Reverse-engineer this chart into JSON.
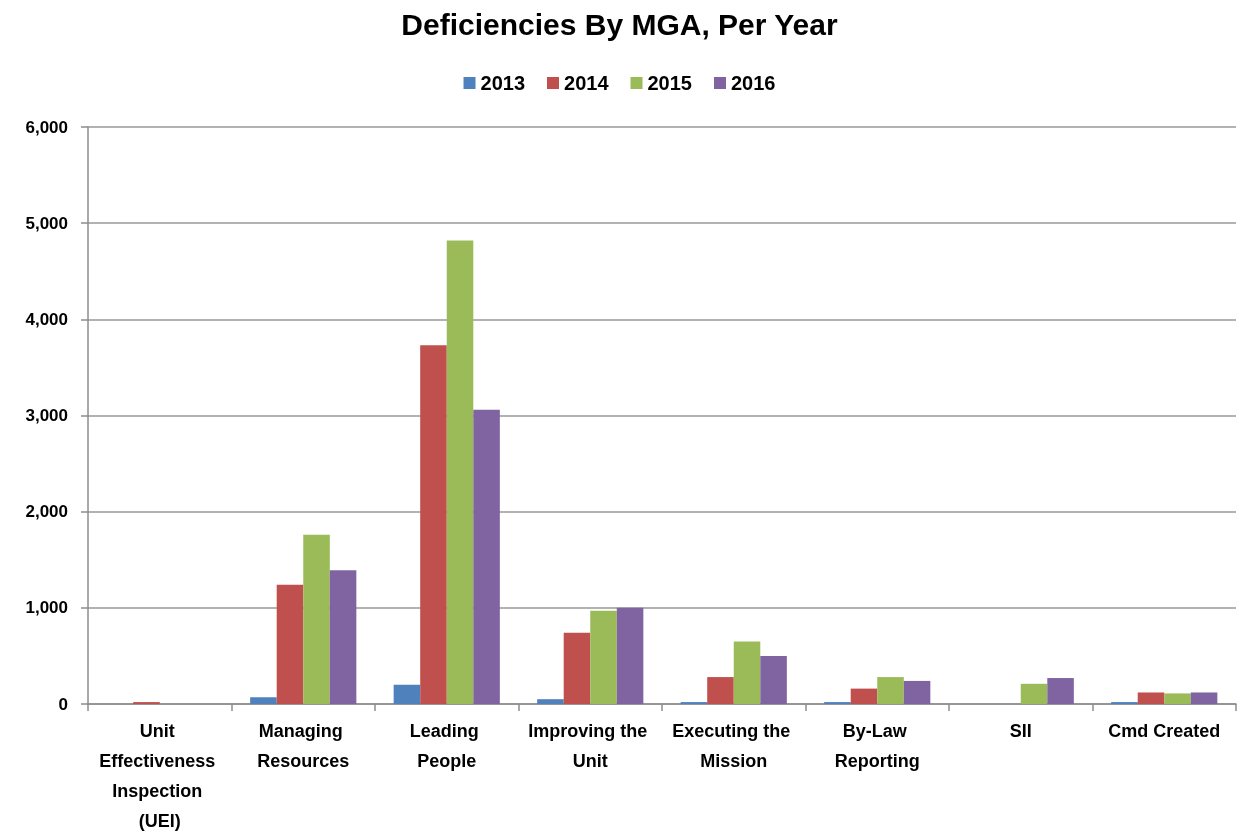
{
  "chart_data": {
    "type": "bar",
    "title": "Deficiencies By MGA, Per Year",
    "categories": [
      "Unit Effectiveness Inspection (UEI)",
      "Managing Resources",
      "Leading People",
      "Improving the Unit",
      "Executing the Mission",
      "By-Law Reporting",
      "SII",
      "Cmd Created"
    ],
    "series": [
      {
        "name": "2013",
        "color": "#4f81bd",
        "values": [
          null,
          70,
          200,
          50,
          20,
          20,
          null,
          20
        ]
      },
      {
        "name": "2014",
        "color": "#c0504d",
        "values": [
          20,
          1240,
          3730,
          740,
          280,
          160,
          null,
          120
        ]
      },
      {
        "name": "2015",
        "color": "#9bbb59",
        "values": [
          null,
          1760,
          4820,
          970,
          650,
          280,
          210,
          110
        ]
      },
      {
        "name": "2016",
        "color": "#8064a2",
        "values": [
          null,
          1390,
          3060,
          1000,
          500,
          240,
          270,
          120
        ]
      }
    ],
    "ylim": [
      0,
      6000
    ],
    "yticks": [
      {
        "value": 0,
        "label": "0"
      },
      {
        "value": 1000,
        "label": "1,000"
      },
      {
        "value": 2000,
        "label": "2,000"
      },
      {
        "value": 3000,
        "label": "3,000"
      },
      {
        "value": 4000,
        "label": "4,000"
      },
      {
        "value": 5000,
        "label": "5,000"
      },
      {
        "value": 6000,
        "label": "6,000"
      }
    ],
    "grid": "y",
    "legend": "top"
  }
}
